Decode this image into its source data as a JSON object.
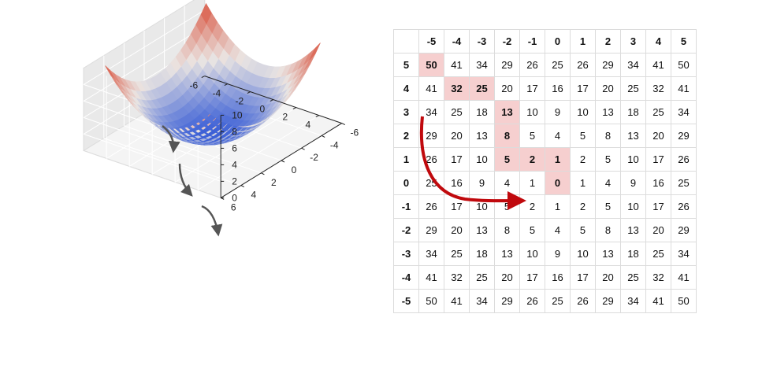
{
  "plot": {
    "x_ticks": [
      "-6",
      "-4",
      "-2",
      "0",
      "2",
      "4"
    ],
    "y_ticks": [
      "-6",
      "-4",
      "-2",
      "0",
      "2",
      "4",
      "6"
    ],
    "z_ticks": [
      "0",
      "2",
      "4",
      "6",
      "8",
      "10"
    ],
    "colors": {
      "low": "#3b5fd6",
      "mid": "#eae5e2",
      "high": "#d9503c",
      "arrow": "#555555"
    }
  },
  "table": {
    "col_headers": [
      "-5",
      "-4",
      "-3",
      "-2",
      "-1",
      "0",
      "1",
      "2",
      "3",
      "4",
      "5"
    ],
    "row_headers": [
      "5",
      "4",
      "3",
      "2",
      "1",
      "0",
      "-1",
      "-2",
      "-3",
      "-4",
      "-5"
    ],
    "rows": [
      [
        "50",
        "41",
        "34",
        "29",
        "26",
        "25",
        "26",
        "29",
        "34",
        "41",
        "50"
      ],
      [
        "41",
        "32",
        "25",
        "20",
        "17",
        "16",
        "17",
        "20",
        "25",
        "32",
        "41"
      ],
      [
        "34",
        "25",
        "18",
        "13",
        "10",
        "9",
        "10",
        "13",
        "18",
        "25",
        "34"
      ],
      [
        "29",
        "20",
        "13",
        "8",
        "5",
        "4",
        "5",
        "8",
        "13",
        "20",
        "29"
      ],
      [
        "26",
        "17",
        "10",
        "5",
        "2",
        "1",
        "2",
        "5",
        "10",
        "17",
        "26"
      ],
      [
        "25",
        "16",
        "9",
        "4",
        "1",
        "0",
        "1",
        "4",
        "9",
        "16",
        "25"
      ],
      [
        "26",
        "17",
        "10",
        "5",
        "2",
        "1",
        "2",
        "5",
        "10",
        "17",
        "26"
      ],
      [
        "29",
        "20",
        "13",
        "8",
        "5",
        "4",
        "5",
        "8",
        "13",
        "20",
        "29"
      ],
      [
        "34",
        "25",
        "18",
        "13",
        "10",
        "9",
        "10",
        "13",
        "18",
        "25",
        "34"
      ],
      [
        "41",
        "32",
        "25",
        "20",
        "17",
        "16",
        "17",
        "20",
        "25",
        "32",
        "41"
      ],
      [
        "50",
        "41",
        "34",
        "29",
        "26",
        "25",
        "26",
        "29",
        "34",
        "41",
        "50"
      ]
    ],
    "highlighted_path": [
      [
        0,
        0
      ],
      [
        1,
        1
      ],
      [
        1,
        2
      ],
      [
        2,
        3
      ],
      [
        3,
        3
      ],
      [
        4,
        3
      ],
      [
        4,
        4
      ],
      [
        4,
        5
      ],
      [
        5,
        5
      ]
    ],
    "colors": {
      "highlight": "#f6cfcf",
      "arrow": "#c0090d",
      "border": "#dcdcdc"
    }
  }
}
